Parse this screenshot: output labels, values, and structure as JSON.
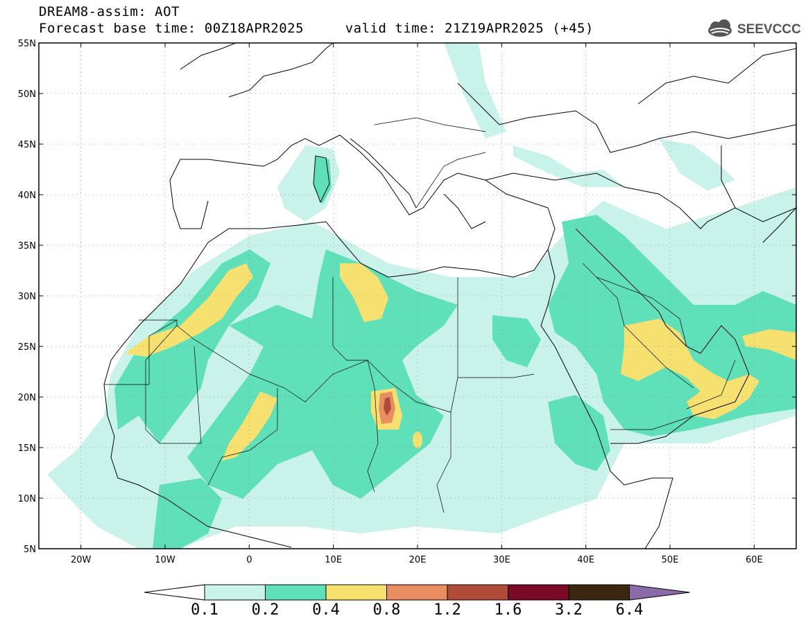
{
  "header": {
    "line1": "DREAM8-assim: AOT",
    "line2": "Forecast base time: 00Z18APR2025     valid time: 21Z19APR2025 (+45)"
  },
  "logo": {
    "text": "SEEVCCC",
    "icon": "cloud-icon"
  },
  "map": {
    "lon_range": [
      -25,
      65
    ],
    "lat_range": [
      5,
      55
    ],
    "lat_ticks": [
      "55N",
      "50N",
      "45N",
      "40N",
      "35N",
      "30N",
      "25N",
      "20N",
      "15N",
      "10N",
      "5N"
    ],
    "lon_ticks": [
      "20W",
      "10W",
      "0",
      "10E",
      "20E",
      "30E",
      "40E",
      "50E",
      "60E"
    ],
    "grid": "dotted"
  },
  "colorbar": {
    "levels": [
      "0.1",
      "0.2",
      "0.4",
      "0.8",
      "1.2",
      "1.6",
      "3.2",
      "6.4"
    ],
    "colors": [
      "#c8f2ea",
      "#5fe0b8",
      "#f5e070",
      "#eb8d62",
      "#b04b3a",
      "#7a0a25",
      "#3b2610",
      "#8a6aa8"
    ]
  }
}
